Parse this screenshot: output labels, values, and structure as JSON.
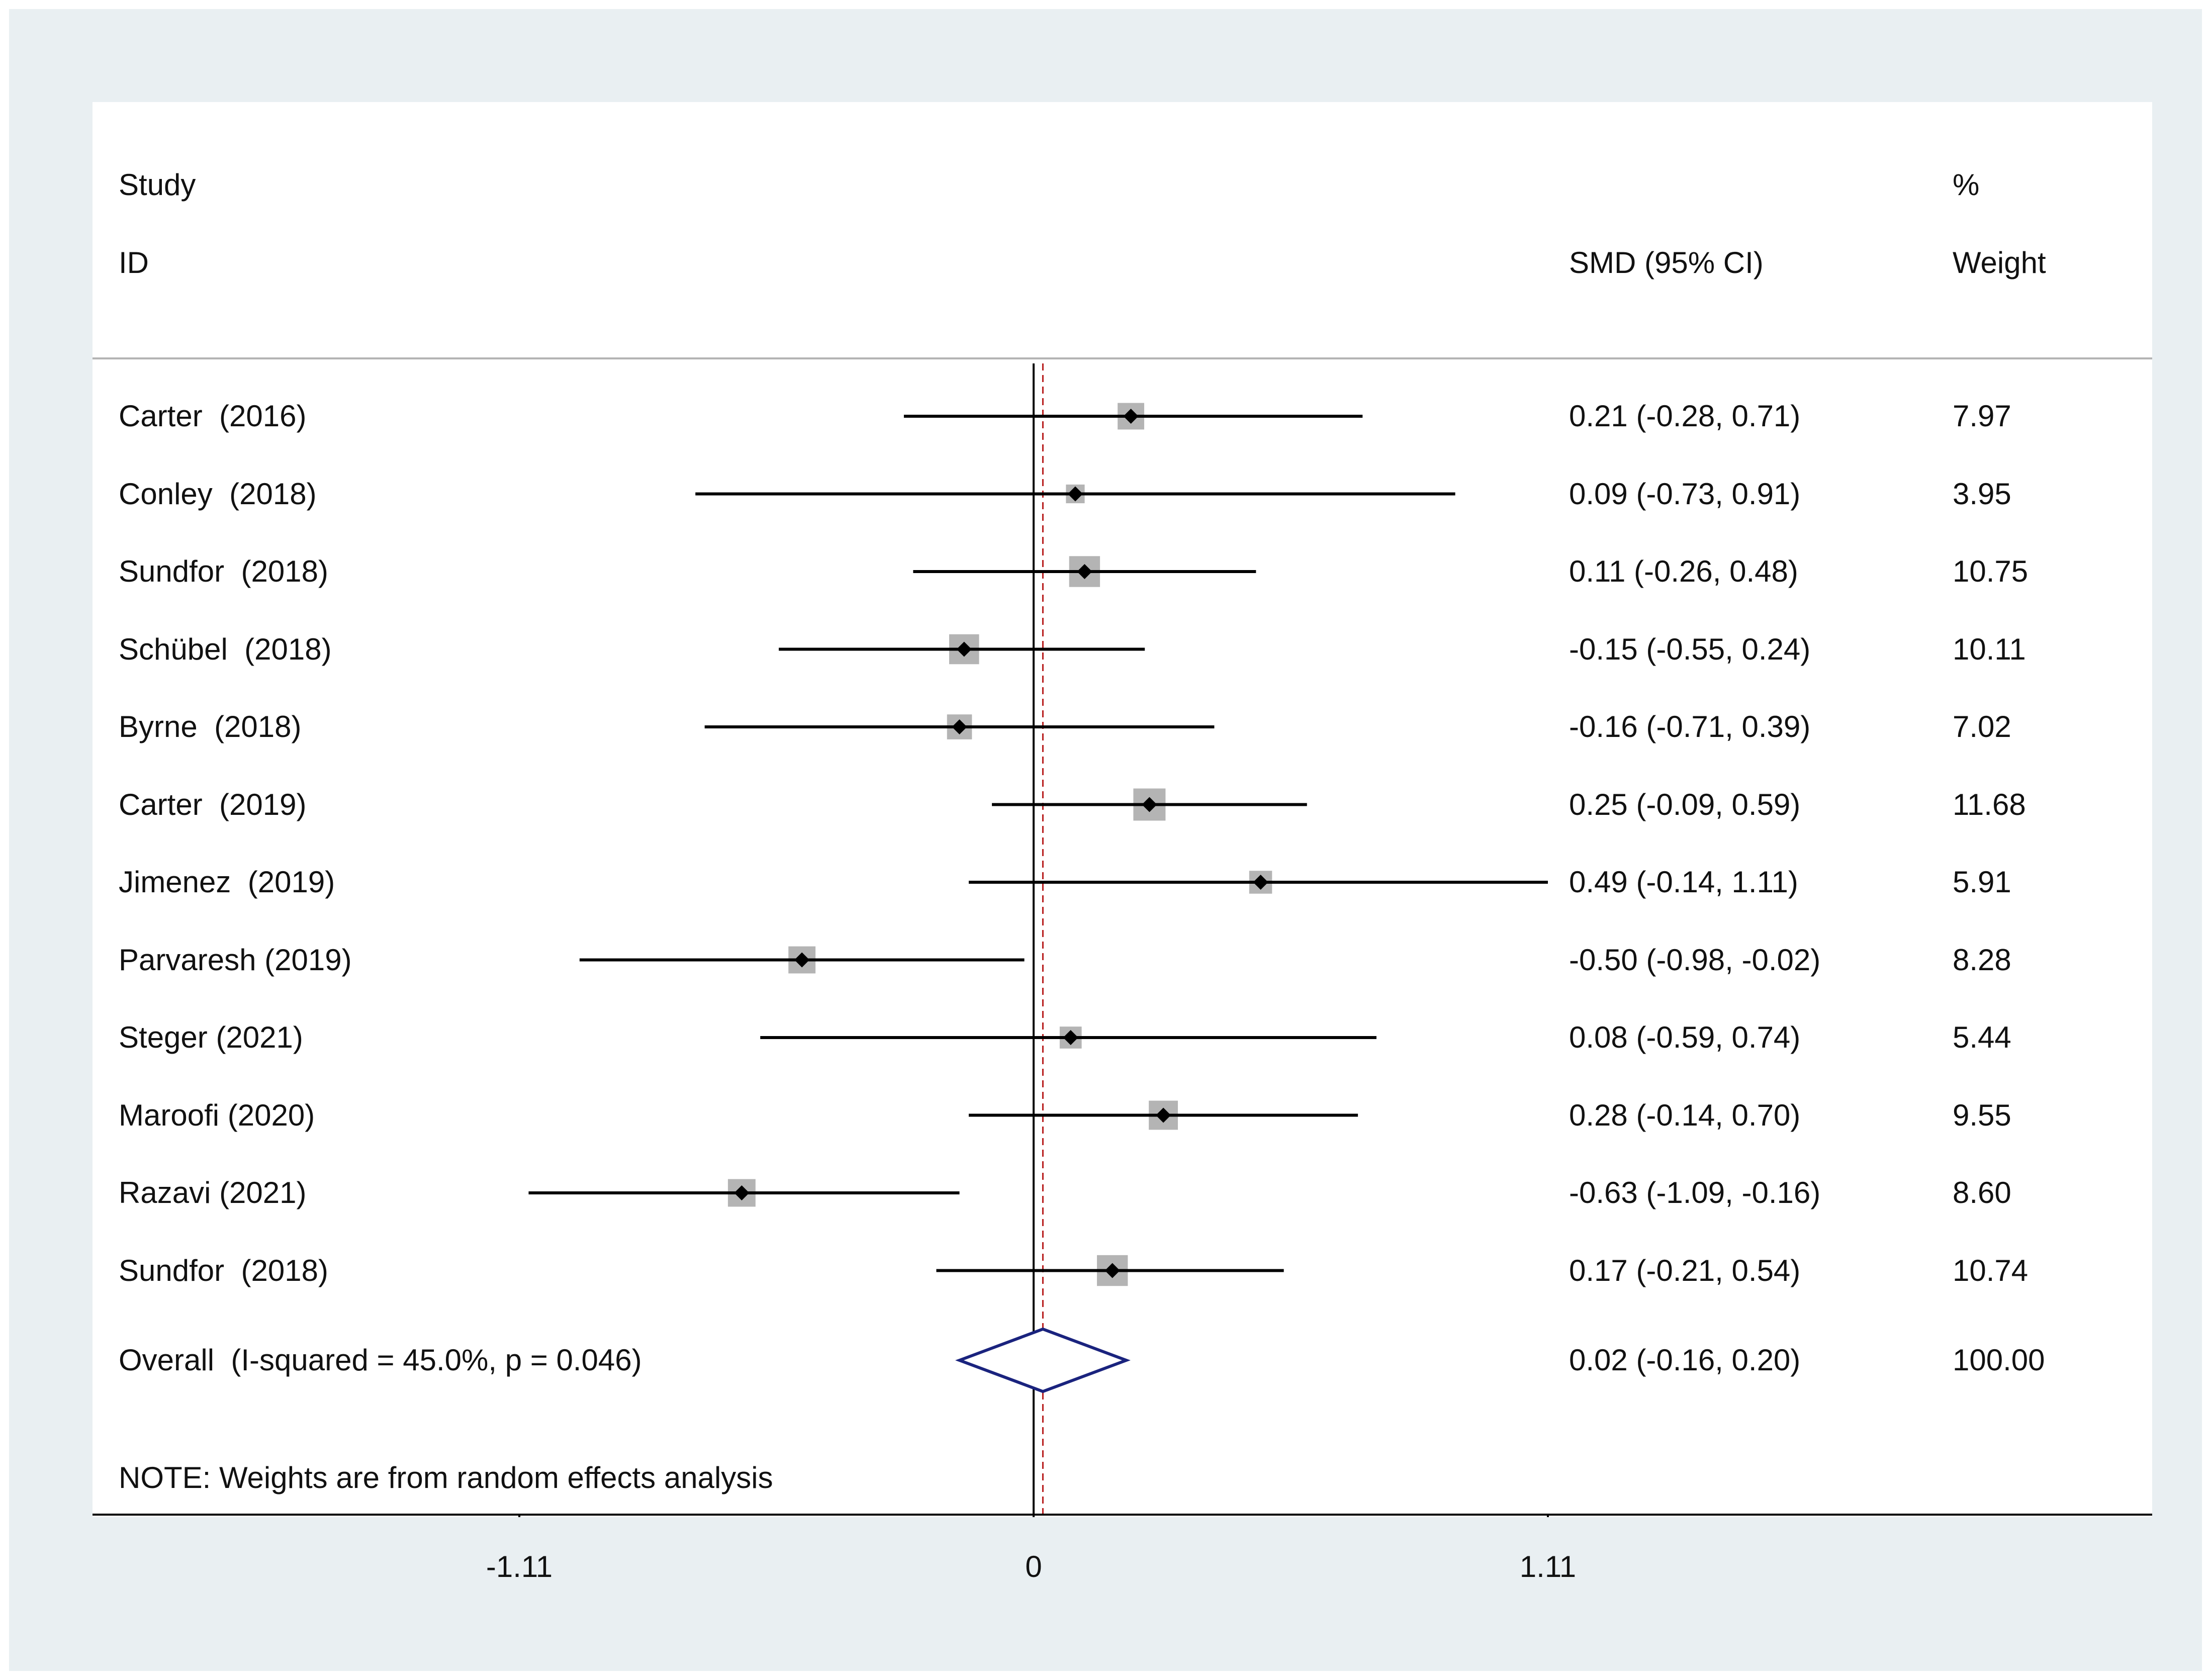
{
  "chart_data": {
    "type": "forest",
    "header": {
      "study_line1": "Study",
      "study_line2": "ID",
      "effect_label": "SMD (95% CI)",
      "weight_line1": "%",
      "weight_line2": "Weight"
    },
    "studies": [
      {
        "label": "Carter  (2016)",
        "smd": 0.21,
        "lo": -0.28,
        "hi": 0.71,
        "ci_text": "0.21 (-0.28, 0.71)",
        "weight": 7.97,
        "weight_text": "7.97"
      },
      {
        "label": "Conley  (2018)",
        "smd": 0.09,
        "lo": -0.73,
        "hi": 0.91,
        "ci_text": "0.09 (-0.73, 0.91)",
        "weight": 3.95,
        "weight_text": "3.95"
      },
      {
        "label": "Sundfor  (2018)",
        "smd": 0.11,
        "lo": -0.26,
        "hi": 0.48,
        "ci_text": "0.11 (-0.26, 0.48)",
        "weight": 10.75,
        "weight_text": "10.75"
      },
      {
        "label": "Schübel  (2018)",
        "smd": -0.15,
        "lo": -0.55,
        "hi": 0.24,
        "ci_text": "-0.15 (-0.55, 0.24)",
        "weight": 10.11,
        "weight_text": "10.11"
      },
      {
        "label": "Byrne  (2018)",
        "smd": -0.16,
        "lo": -0.71,
        "hi": 0.39,
        "ci_text": "-0.16 (-0.71, 0.39)",
        "weight": 7.02,
        "weight_text": "7.02"
      },
      {
        "label": "Carter  (2019)",
        "smd": 0.25,
        "lo": -0.09,
        "hi": 0.59,
        "ci_text": "0.25 (-0.09, 0.59)",
        "weight": 11.68,
        "weight_text": "11.68"
      },
      {
        "label": "Jimenez  (2019)",
        "smd": 0.49,
        "lo": -0.14,
        "hi": 1.11,
        "ci_text": "0.49 (-0.14, 1.11)",
        "weight": 5.91,
        "weight_text": "5.91"
      },
      {
        "label": "Parvaresh (2019)",
        "smd": -0.5,
        "lo": -0.98,
        "hi": -0.02,
        "ci_text": "-0.50 (-0.98, -0.02)",
        "weight": 8.28,
        "weight_text": "8.28"
      },
      {
        "label": "Steger (2021)",
        "smd": 0.08,
        "lo": -0.59,
        "hi": 0.74,
        "ci_text": "0.08 (-0.59, 0.74)",
        "weight": 5.44,
        "weight_text": "5.44"
      },
      {
        "label": "Maroofi (2020)",
        "smd": 0.28,
        "lo": -0.14,
        "hi": 0.7,
        "ci_text": "0.28 (-0.14, 0.70)",
        "weight": 9.55,
        "weight_text": "9.55"
      },
      {
        "label": "Razavi (2021)",
        "smd": -0.63,
        "lo": -1.09,
        "hi": -0.16,
        "ci_text": "-0.63 (-1.09, -0.16)",
        "weight": 8.6,
        "weight_text": "8.60"
      },
      {
        "label": "Sundfor  (2018)",
        "smd": 0.17,
        "lo": -0.21,
        "hi": 0.54,
        "ci_text": "0.17 (-0.21, 0.54)",
        "weight": 10.74,
        "weight_text": "10.74"
      }
    ],
    "overall": {
      "label": "Overall  (I-squared = 45.0%, p = 0.046)",
      "smd": 0.02,
      "lo": -0.16,
      "hi": 0.2,
      "ci_text": "0.02 (-0.16, 0.20)",
      "weight_text": "100.00"
    },
    "note": "NOTE: Weights are from random effects analysis",
    "x_ticks": [
      {
        "value": -1.11,
        "label": "-1.11"
      },
      {
        "value": 0,
        "label": "0"
      },
      {
        "value": 1.11,
        "label": "1.11"
      }
    ],
    "null_line": 0,
    "colors": {
      "background": "#e9eff2",
      "panel": "#ffffff",
      "ci_line": "#000000",
      "weight_box": "#b4b4b4",
      "point": "#000000",
      "diamond": "#1a237e",
      "overall_line": "#b71c1c",
      "separator": "#b4b4b4"
    }
  }
}
